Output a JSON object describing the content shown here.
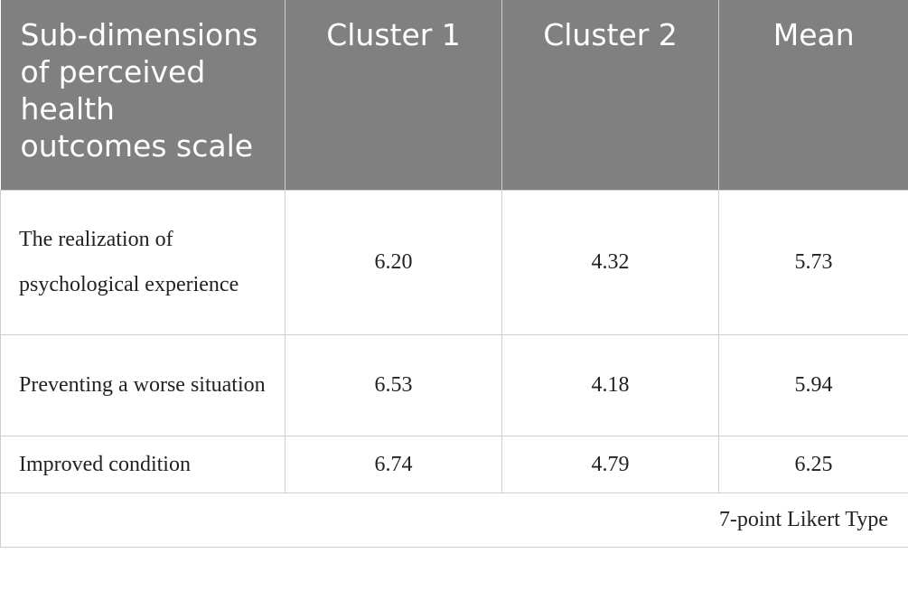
{
  "table": {
    "header": [
      "Sub-dimensions of perceived health outcomes scale",
      "Cluster 1",
      "Cluster 2",
      "Mean"
    ],
    "rows": [
      [
        "The realization of psychological experience",
        "6.20",
        "4.32",
        "5.73"
      ],
      [
        "Preventing a worse situation",
        "6.53",
        "4.18",
        "5.94"
      ],
      [
        "Improved condition",
        "6.74",
        "4.79",
        "6.25"
      ]
    ],
    "footnote": "7-point Likert Type"
  }
}
